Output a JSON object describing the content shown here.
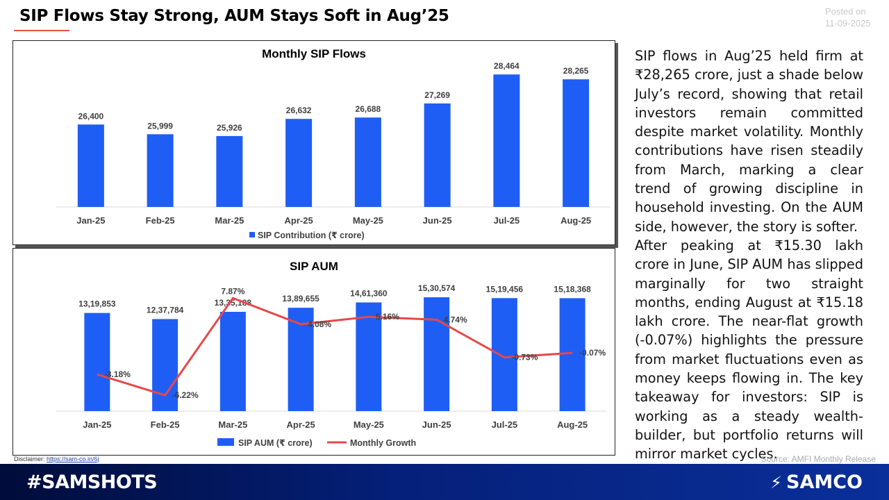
{
  "header": {
    "title": "SIP Flows Stay Strong, AUM Stays Soft in Aug’25",
    "posted_label": "Posted on",
    "posted_date": "11-09-2025"
  },
  "colors": {
    "bar": "#1f5ef5",
    "line": "#e8474a",
    "accent": "#e0533d"
  },
  "chart_data": [
    {
      "type": "bar",
      "title": "Monthly SIP Flows",
      "categories": [
        "Jan-25",
        "Feb-25",
        "Mar-25",
        "Apr-25",
        "May-25",
        "Jun-25",
        "Jul-25",
        "Aug-25"
      ],
      "series": [
        {
          "name": "SIP Contribution (₹ crore)",
          "values": [
            26400,
            25999,
            25926,
            26632,
            26688,
            27269,
            28464,
            28265
          ],
          "labels": [
            "26,400",
            "25,999",
            "25,926",
            "26,632",
            "26,688",
            "27,269",
            "28,464",
            "28,265"
          ]
        }
      ],
      "ylim": [
        23000,
        28700
      ],
      "grid": false,
      "legend": "bottom"
    },
    {
      "type": "bar",
      "title": "SIP AUM",
      "categories": [
        "Jan-25",
        "Feb-25",
        "Mar-25",
        "Apr-25",
        "May-25",
        "Jun-25",
        "Jul-25",
        "Aug-25"
      ],
      "series": [
        {
          "name": "SIP AUM  (₹ crore)",
          "values": [
            1319853,
            1237784,
            1335188,
            1389655,
            1461360,
            1530574,
            1519456,
            1518368
          ],
          "labels": [
            "13,19,853",
            "12,37,784",
            "13,35,188",
            "13,89,655",
            "14,61,360",
            "15,30,574",
            "15,19,456",
            "15,18,368"
          ]
        },
        {
          "name": "Monthly Growth",
          "type": "line",
          "axis": "secondary",
          "values": [
            -3.18,
            -6.22,
            7.87,
            4.08,
            5.16,
            4.74,
            -0.73,
            -0.07
          ],
          "labels": [
            "-3.18%",
            "-6.22%",
            "7.87%",
            "4.08%",
            "5.16%",
            "4.74%",
            "-0.73%",
            "-0.07%"
          ]
        }
      ],
      "ylim": [
        0,
        1550000
      ],
      "y2lim": [
        -6.8,
        8.3
      ],
      "grid": false,
      "legend": "bottom"
    }
  ],
  "commentary": {
    "p1": "SIP flows in Aug’25 held firm at ₹28,265 crore, just a shade below July’s record, showing that retail investors remain committed despite market volatility. Monthly contributions have risen steadily from March, marking a clear trend of growing discipline in household investing. On the AUM side, however, the story is softer.",
    "p2": "After peaking at ₹15.30 lakh crore in June, SIP AUM has slipped marginally for two straight months, ending August at ₹15.18 lakh crore. The near-flat growth (-0.07%) highlights the pressure from market fluctuations even as money keeps flowing in. The key takeaway for investors: SIP is working as a steady wealth-builder, but portfolio returns will mirror market cycles."
  },
  "footer": {
    "disclaimer_label": "Disclaimer:",
    "disclaimer_link": "https://sam-co.in/6j",
    "source": "Source: AMFI Monthly Release",
    "hashtag": "#SAMSHOTS",
    "logo_text": "SAMCO",
    "logo_icon": "samco-logo-icon"
  }
}
